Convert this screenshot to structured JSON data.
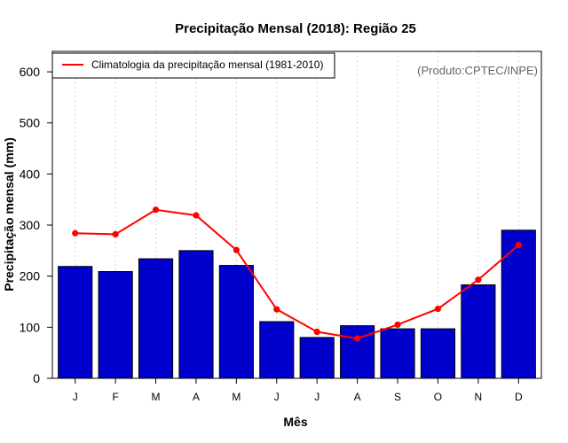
{
  "chart_data": {
    "type": "bar",
    "title": "Precipitação Mensal (2018): Região 25",
    "xlabel": "Mês",
    "ylabel": "Precipitação mensal (mm)",
    "ylim": [
      0,
      640
    ],
    "yticks": [
      0,
      100,
      200,
      300,
      400,
      500,
      600
    ],
    "categories": [
      "J",
      "F",
      "M",
      "A",
      "M",
      "J",
      "J",
      "A",
      "S",
      "O",
      "N",
      "D"
    ],
    "series": [
      {
        "name": "Precipitação mensal (2018)",
        "type": "bar",
        "values": [
          219,
          209,
          234,
          250,
          221,
          111,
          80,
          103,
          97,
          97,
          183,
          290
        ]
      },
      {
        "name": "Climatologia da precipitação mensal (1981-2010)",
        "type": "line",
        "values": [
          284,
          282,
          330,
          319,
          251,
          135,
          91,
          78,
          105,
          136,
          193,
          261
        ]
      }
    ],
    "legend": {
      "entries": [
        "Climatologia da precipitação mensal (1981-2010)"
      ],
      "position": "top-left"
    },
    "grid": "vertical dotted",
    "annotation": "(Produto:CPTEC/INPE)",
    "colors": {
      "bar_fill": "#0000cd",
      "bar_stroke": "#000000",
      "line": "#ff0000",
      "grid": "#d3d3d3",
      "annotation": "#666666"
    }
  }
}
